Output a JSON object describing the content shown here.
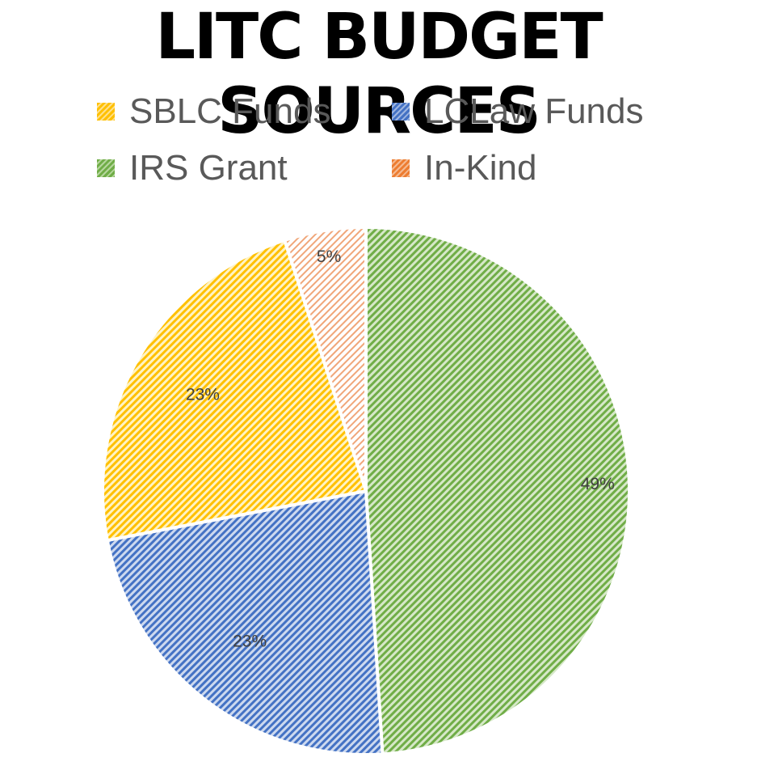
{
  "chart_data": {
    "type": "pie",
    "title": "LITC BUDGET SOURCES",
    "categories": [
      "IRS Grant",
      "LCLaw Funds",
      "SBLC Funds",
      "In-Kind"
    ],
    "values": [
      49,
      23,
      23,
      5
    ],
    "labels": [
      "49%",
      "23%",
      "23%",
      "5%"
    ],
    "colors": [
      "#70ad47",
      "#4472c4",
      "#ffc000",
      "#ed7d31"
    ],
    "legend": [
      {
        "label": "SBLC Funds",
        "color": "#ffc000"
      },
      {
        "label": "LCLaw Funds",
        "color": "#4472c4"
      },
      {
        "label": "IRS Grant",
        "color": "#70ad47"
      },
      {
        "label": "In-Kind",
        "color": "#ed7d31"
      }
    ],
    "legend_position": "top",
    "fill_pattern": "diagonal-hatch"
  }
}
